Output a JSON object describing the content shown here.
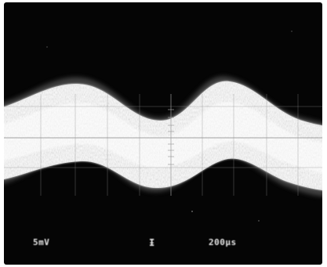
{
  "screen": {
    "background_color": "#050505",
    "frame_color": "#ffffff",
    "trace_color": "#f2f2f2",
    "graticule_color": "#9a9a9a"
  },
  "readouts": {
    "volts_per_div": "5mV",
    "trigger_marker": "Ɨ",
    "time_per_div": "200µs"
  },
  "trace": {
    "description_type": "noisy sinusoidal band",
    "cycles_visible": 2.5
  }
}
